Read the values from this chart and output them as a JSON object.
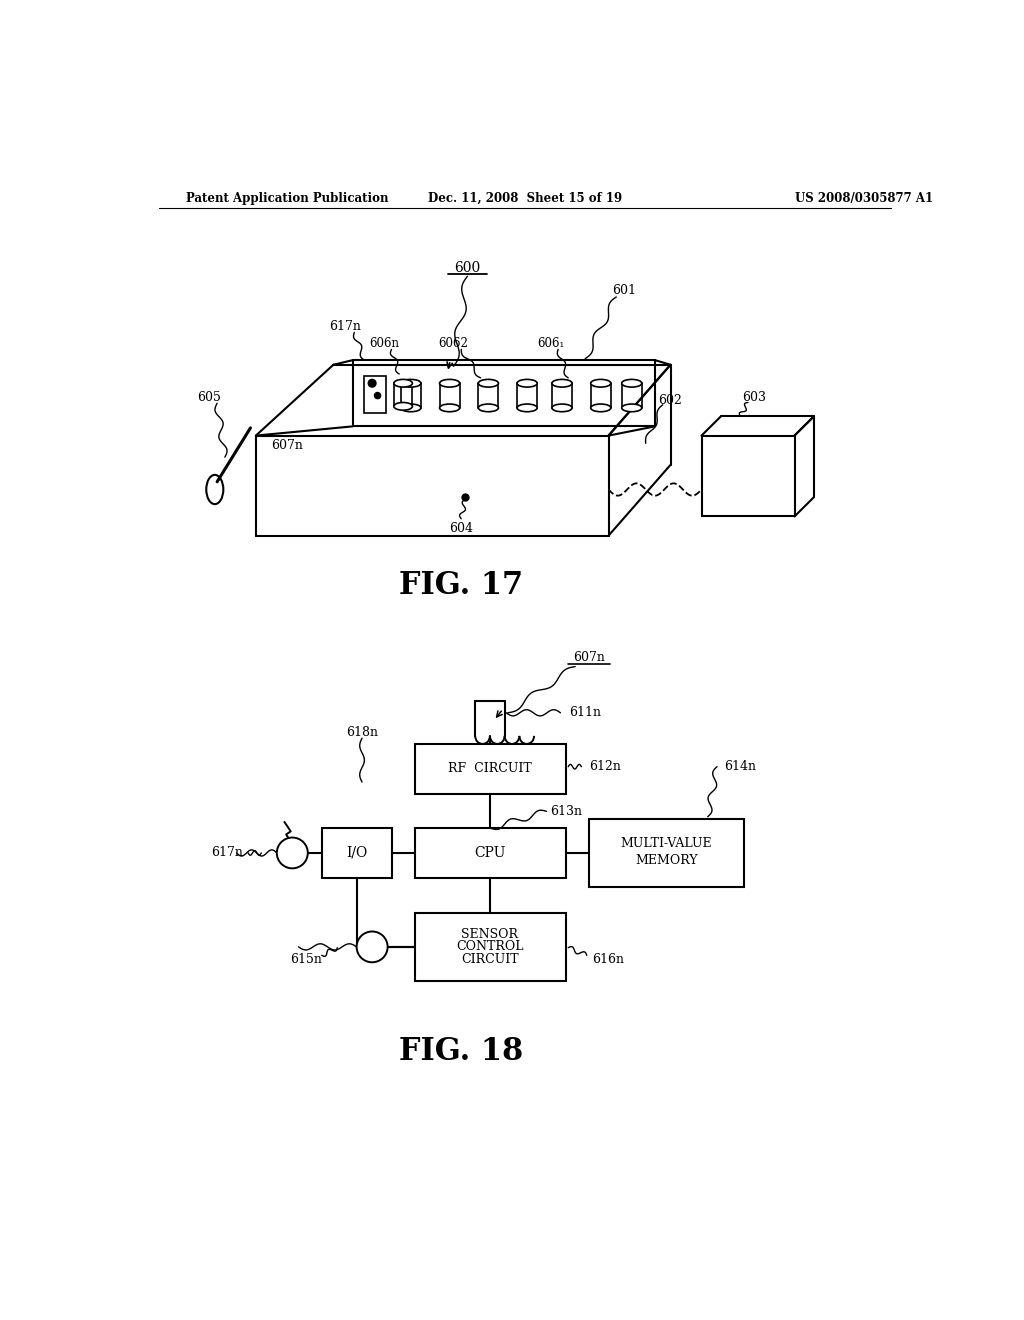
{
  "bg_color": "#ffffff",
  "header_left": "Patent Application Publication",
  "header_mid": "Dec. 11, 2008  Sheet 15 of 19",
  "header_right": "US 2008/0305877 A1",
  "fig17_label": "FIG. 17",
  "fig18_label": "FIG. 18"
}
